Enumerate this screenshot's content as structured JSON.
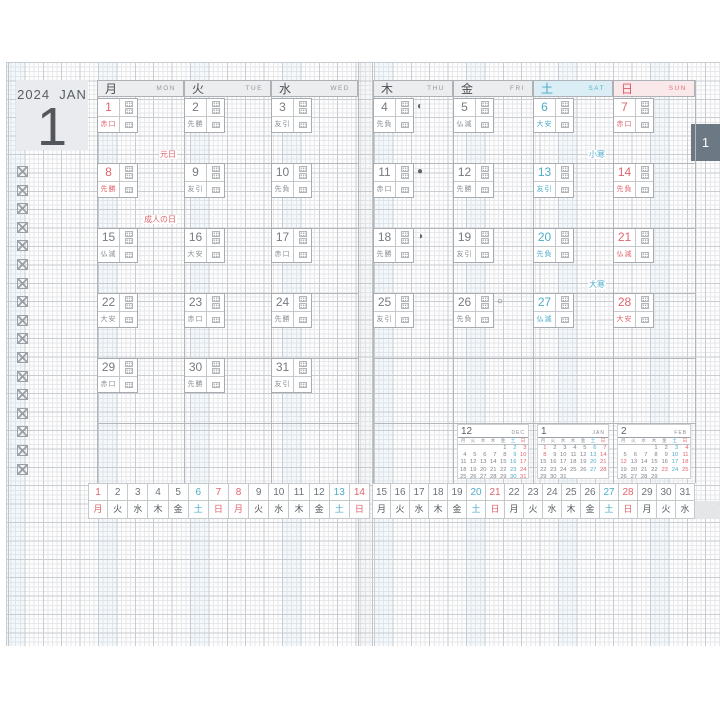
{
  "title_panel": {
    "year": "2024",
    "month_abbr": "JAN",
    "big_number": "1"
  },
  "side_tab": {
    "label": "1"
  },
  "colors": {
    "red": "#e0646e",
    "blue": "#4facc8",
    "weekday_text": "#767b81",
    "header_bg": "#ebedef",
    "sat_bg": "#dbeef5",
    "sun_bg": "#fae9eb",
    "tab_bg": "#6d7885"
  },
  "day_headers": [
    {
      "kanji": "月",
      "roman": "MON",
      "type": "weekday"
    },
    {
      "kanji": "火",
      "roman": "TUE",
      "type": "weekday"
    },
    {
      "kanji": "水",
      "roman": "WED",
      "type": "weekday"
    },
    {
      "kanji": "木",
      "roman": "THU",
      "type": "weekday"
    },
    {
      "kanji": "金",
      "roman": "FRI",
      "type": "weekday"
    },
    {
      "kanji": "土",
      "roman": "SAT",
      "type": "sat"
    },
    {
      "kanji": "日",
      "roman": "SUN",
      "type": "sun"
    }
  ],
  "days": [
    {
      "date": "1",
      "rokuyo": "赤口",
      "type": "holiday",
      "note": "元日",
      "note_color": "red"
    },
    {
      "date": "2",
      "rokuyo": "先勝",
      "type": "weekday"
    },
    {
      "date": "3",
      "rokuyo": "友引",
      "type": "weekday"
    },
    {
      "date": "4",
      "rokuyo": "先負",
      "type": "weekday",
      "moon": "◐"
    },
    {
      "date": "5",
      "rokuyo": "仏滅",
      "type": "weekday"
    },
    {
      "date": "6",
      "rokuyo": "大安",
      "type": "sat",
      "note": "小寒",
      "note_color": "blue"
    },
    {
      "date": "7",
      "rokuyo": "赤口",
      "type": "sun"
    },
    {
      "date": "8",
      "rokuyo": "先勝",
      "type": "holiday",
      "note": "成人の日",
      "note_color": "red"
    },
    {
      "date": "9",
      "rokuyo": "友引",
      "type": "weekday"
    },
    {
      "date": "10",
      "rokuyo": "先負",
      "type": "weekday"
    },
    {
      "date": "11",
      "rokuyo": "赤口",
      "type": "weekday",
      "moon": "●"
    },
    {
      "date": "12",
      "rokuyo": "先勝",
      "type": "weekday"
    },
    {
      "date": "13",
      "rokuyo": "友引",
      "type": "sat"
    },
    {
      "date": "14",
      "rokuyo": "先負",
      "type": "sun"
    },
    {
      "date": "15",
      "rokuyo": "仏滅",
      "type": "weekday"
    },
    {
      "date": "16",
      "rokuyo": "大安",
      "type": "weekday"
    },
    {
      "date": "17",
      "rokuyo": "赤口",
      "type": "weekday"
    },
    {
      "date": "18",
      "rokuyo": "先勝",
      "type": "weekday",
      "moon": "◑"
    },
    {
      "date": "19",
      "rokuyo": "友引",
      "type": "weekday"
    },
    {
      "date": "20",
      "rokuyo": "先負",
      "type": "sat",
      "note": "大寒",
      "note_color": "blue"
    },
    {
      "date": "21",
      "rokuyo": "仏滅",
      "type": "sun"
    },
    {
      "date": "22",
      "rokuyo": "大安",
      "type": "weekday"
    },
    {
      "date": "23",
      "rokuyo": "赤口",
      "type": "weekday"
    },
    {
      "date": "24",
      "rokuyo": "先勝",
      "type": "weekday"
    },
    {
      "date": "25",
      "rokuyo": "友引",
      "type": "weekday"
    },
    {
      "date": "26",
      "rokuyo": "先負",
      "type": "weekday",
      "moon": "○"
    },
    {
      "date": "27",
      "rokuyo": "仏滅",
      "type": "sat"
    },
    {
      "date": "28",
      "rokuyo": "大安",
      "type": "sun"
    },
    {
      "date": "29",
      "rokuyo": "赤口",
      "type": "weekday"
    },
    {
      "date": "30",
      "rokuyo": "先勝",
      "type": "weekday"
    },
    {
      "date": "31",
      "rokuyo": "友引",
      "type": "weekday"
    }
  ],
  "checkbox_count": 17,
  "mini_calendars": [
    {
      "number": "12",
      "abbr": "DEC",
      "dow": [
        "月",
        "火",
        "水",
        "木",
        "金",
        "土",
        "日"
      ],
      "weeks": [
        [
          "",
          "",
          "",
          "",
          "1",
          "2",
          "3"
        ],
        [
          "4",
          "5",
          "6",
          "7",
          "8",
          "9",
          "10"
        ],
        [
          "11",
          "12",
          "13",
          "14",
          "15",
          "16",
          "17"
        ],
        [
          "18",
          "19",
          "20",
          "21",
          "22",
          "23",
          "24"
        ],
        [
          "25",
          "26",
          "27",
          "28",
          "29",
          "30",
          "31"
        ]
      ],
      "red_extra": []
    },
    {
      "number": "1",
      "abbr": "JAN",
      "dow": [
        "月",
        "火",
        "水",
        "木",
        "金",
        "土",
        "日"
      ],
      "weeks": [
        [
          "1",
          "2",
          "3",
          "4",
          "5",
          "6",
          "7"
        ],
        [
          "8",
          "9",
          "10",
          "11",
          "12",
          "13",
          "14"
        ],
        [
          "15",
          "16",
          "17",
          "18",
          "19",
          "20",
          "21"
        ],
        [
          "22",
          "23",
          "24",
          "25",
          "26",
          "27",
          "28"
        ],
        [
          "29",
          "30",
          "31",
          "",
          "",
          "",
          ""
        ]
      ],
      "red_extra": [
        "1",
        "8"
      ]
    },
    {
      "number": "2",
      "abbr": "FEB",
      "dow": [
        "月",
        "火",
        "水",
        "木",
        "金",
        "土",
        "日"
      ],
      "weeks": [
        [
          "",
          "",
          "",
          "1",
          "2",
          "3",
          "4"
        ],
        [
          "5",
          "6",
          "7",
          "8",
          "9",
          "10",
          "11"
        ],
        [
          "12",
          "13",
          "14",
          "15",
          "16",
          "17",
          "18"
        ],
        [
          "19",
          "20",
          "21",
          "22",
          "23",
          "24",
          "25"
        ],
        [
          "26",
          "27",
          "28",
          "29",
          "",
          "",
          ""
        ]
      ],
      "red_extra": [
        "12",
        "23"
      ]
    }
  ],
  "bottom_strip": {
    "dow_kanji": [
      "月",
      "火",
      "水",
      "木",
      "金",
      "土",
      "日"
    ]
  }
}
